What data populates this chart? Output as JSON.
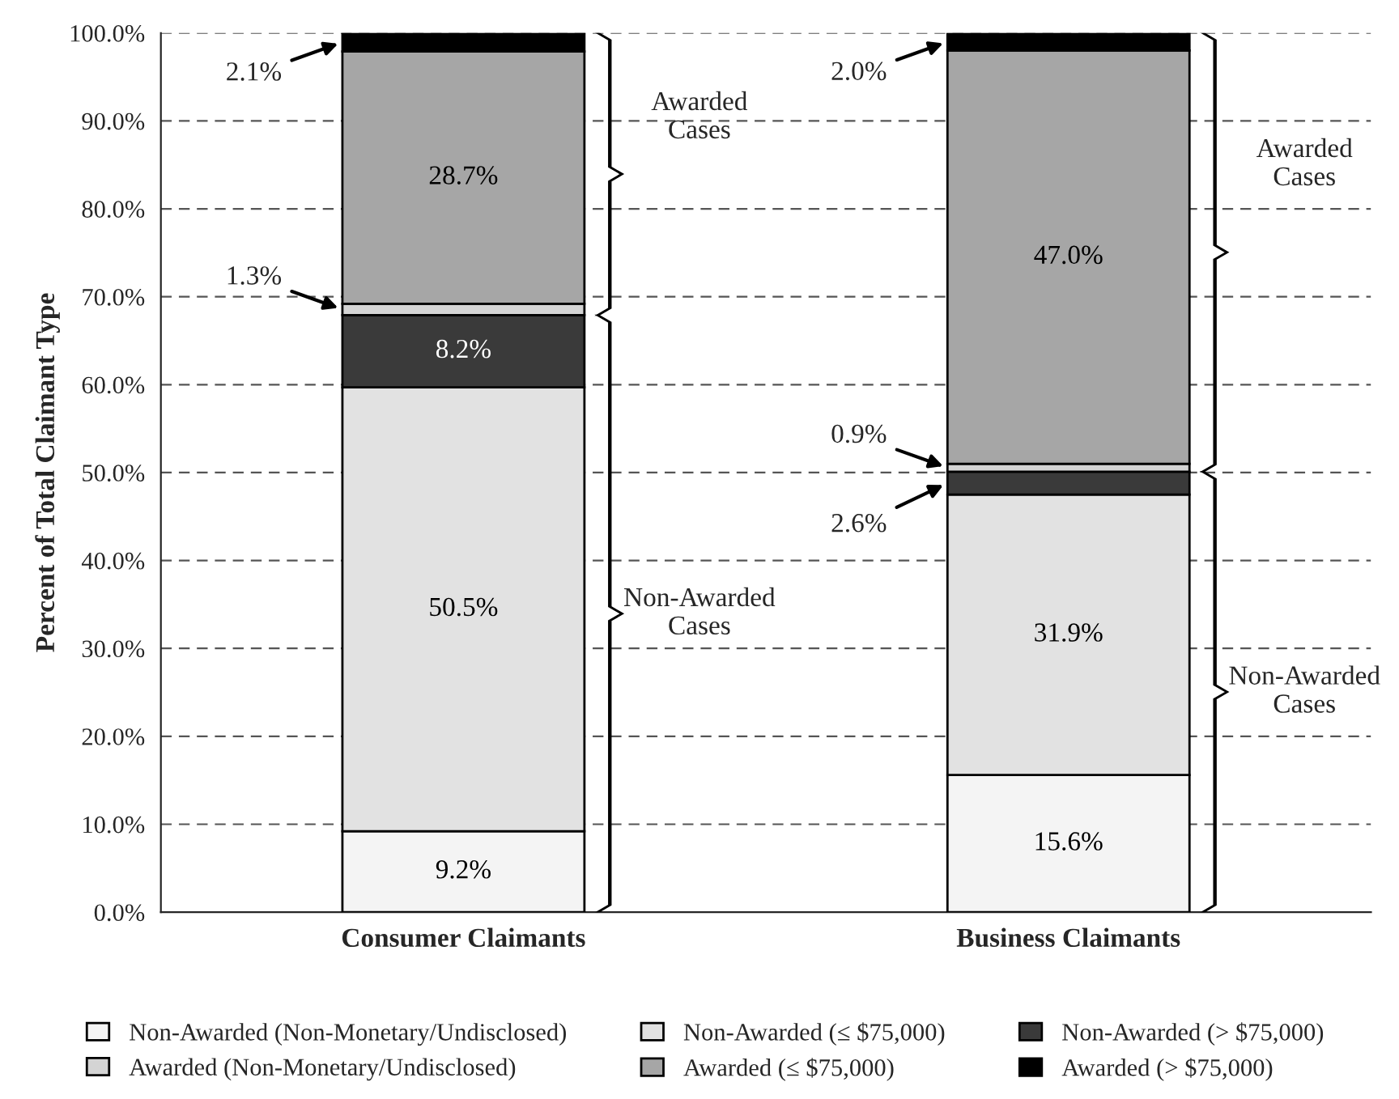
{
  "chart_data": {
    "type": "bar",
    "stacked": true,
    "ylabel": "Percent of Total Claimant Type",
    "categories": [
      "Consumer Claimants",
      "Business Claimants"
    ],
    "series": [
      {
        "name": "Non-Awarded (Non-Monetary/Undisclosed)",
        "color": "#f4f4f4",
        "values": [
          9.2,
          15.6
        ],
        "value_labels": [
          "9.2%",
          "15.6%"
        ]
      },
      {
        "name": "Non-Awarded (≤ $75,000)",
        "color": "#e2e2e2",
        "values": [
          50.5,
          31.9
        ],
        "value_labels": [
          "50.5%",
          "31.9%"
        ]
      },
      {
        "name": "Non-Awarded (> $75,000)",
        "color": "#3a3a3a",
        "values": [
          8.2,
          2.6
        ],
        "value_labels": [
          "8.2%",
          "2.6%"
        ]
      },
      {
        "name": "Awarded (Non-Monetary/Undisclosed)",
        "color": "#d4d4d4",
        "values": [
          1.3,
          0.9
        ],
        "value_labels": [
          "1.3%",
          "0.9%"
        ]
      },
      {
        "name": "Awarded (≤ $75,000)",
        "color": "#a6a6a6",
        "values": [
          28.7,
          47.0
        ],
        "value_labels": [
          "28.7%",
          "47.0%"
        ]
      },
      {
        "name": "Awarded (> $75,000)",
        "color": "#000000",
        "values": [
          2.1,
          2.0
        ],
        "value_labels": [
          "2.1%",
          "2.0%"
        ]
      }
    ],
    "ylim": [
      0,
      100
    ],
    "yticks": [
      {
        "value": 0,
        "label": "0.0%"
      },
      {
        "value": 10,
        "label": "10.0%"
      },
      {
        "value": 20,
        "label": "20.0%"
      },
      {
        "value": 30,
        "label": "30.0%"
      },
      {
        "value": 40,
        "label": "40.0%"
      },
      {
        "value": 50,
        "label": "50.0%"
      },
      {
        "value": 60,
        "label": "60.0%"
      },
      {
        "value": 70,
        "label": "70.0%"
      },
      {
        "value": 80,
        "label": "80.0%"
      },
      {
        "value": 90,
        "label": "90.0%"
      },
      {
        "value": 100,
        "label": "100.0%"
      }
    ],
    "grid": "y",
    "legend": "bottom",
    "annotations": [
      "Awarded\nCases",
      "Non-Awarded\nCases",
      "Awarded\nCases",
      "Non-Awarded\nCases"
    ]
  }
}
